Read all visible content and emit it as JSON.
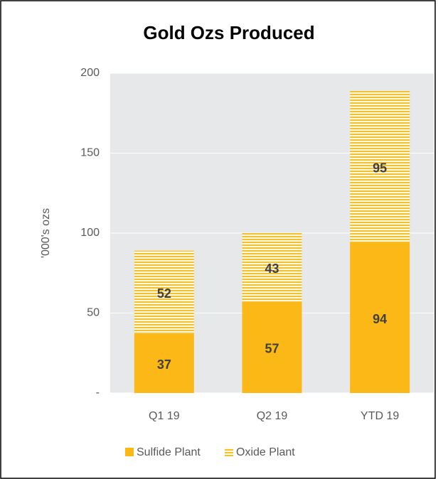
{
  "chart_data": {
    "type": "stacked_bar",
    "title": "Gold Ozs Produced",
    "y_label": "'000's ozs",
    "categories": [
      "Q1 19",
      "Q2 19",
      "YTD 19"
    ],
    "series": [
      {
        "name": "Sulfide Plant",
        "color": "#fbb817",
        "values": [
          37,
          57,
          94
        ]
      },
      {
        "name": "Oxide Plant",
        "color": "#f4c12e",
        "pattern": "horizontal-stripes",
        "values": [
          52,
          43,
          95
        ]
      }
    ],
    "ylim": [
      0,
      200
    ],
    "yticks": [
      {
        "value": 0,
        "label": "-"
      },
      50,
      100,
      150,
      200
    ],
    "grid": true,
    "legend": "bottom"
  }
}
